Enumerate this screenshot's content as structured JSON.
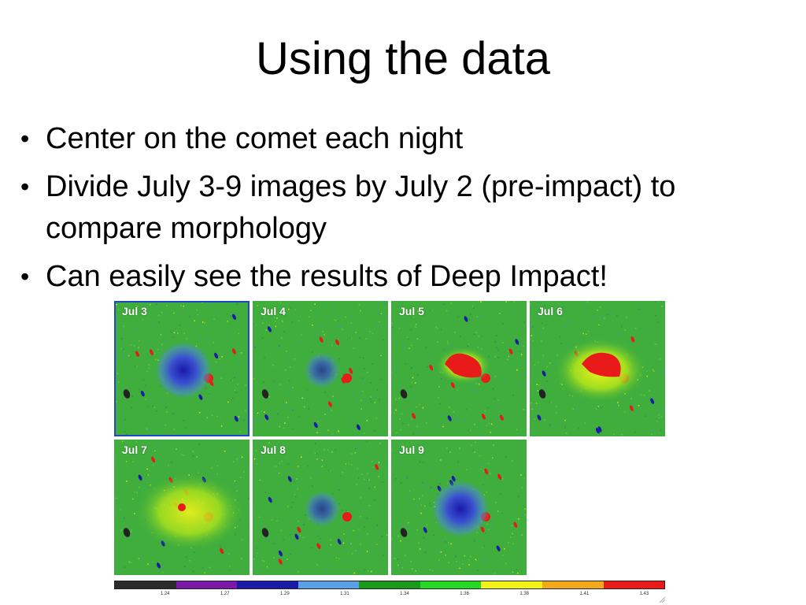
{
  "slide": {
    "title": "Using the data",
    "bullets": [
      "Center on the comet each night",
      "Divide July 3-9 images by July 2 (pre-impact) to compare morphology",
      "Can easily see the results of Deep Impact!"
    ]
  },
  "figure": {
    "panels": [
      {
        "label": "Jul 3",
        "feature": "blue-deficit"
      },
      {
        "label": "Jul 4",
        "feature": "faint-blue"
      },
      {
        "label": "Jul 5",
        "feature": "red-ejecta"
      },
      {
        "label": "Jul 6",
        "feature": "red-yellow-plume"
      },
      {
        "label": "Jul 7",
        "feature": "yellow-fan"
      },
      {
        "label": "Jul 8",
        "feature": "faint-blue"
      },
      {
        "label": "Jul 9",
        "feature": "blue-deficit"
      }
    ],
    "colorbar": {
      "colors": [
        "#2b2b2b",
        "#7a18a8",
        "#1a1aa8",
        "#5aa0e6",
        "#1a9a1a",
        "#24d824",
        "#f2f21a",
        "#f2a81a",
        "#e81a1a"
      ],
      "ticks": [
        "1.24",
        "1.27",
        "1.29",
        "1.31",
        "1.34",
        "1.36",
        "1.38",
        "1.41",
        "1.43"
      ]
    }
  }
}
